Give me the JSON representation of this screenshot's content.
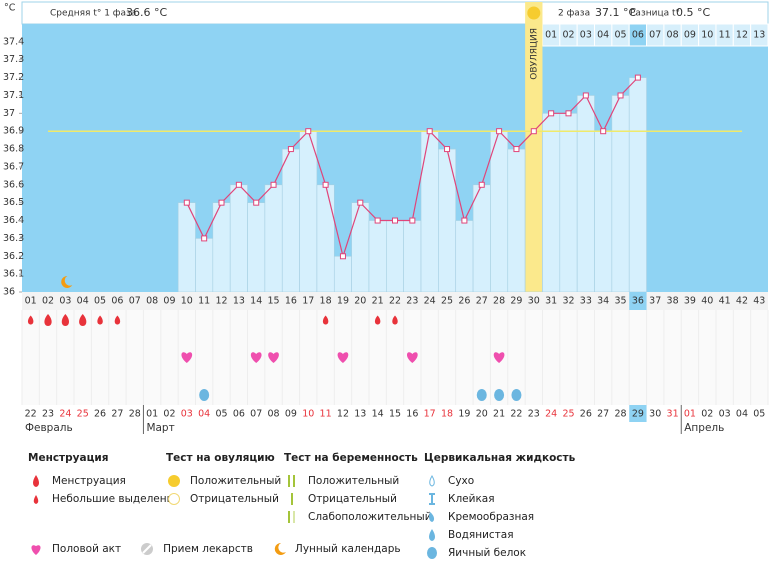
{
  "header": {
    "phase1_label": "Средняя t° 1 фаза",
    "phase1_value": "36.6 °C",
    "phase2_label": "2 фаза",
    "phase2_value": "37.1 °C",
    "diff_label": "Разница t°",
    "diff_value": "0.5 °C"
  },
  "chart_data": {
    "type": "line",
    "y_unit": "°C",
    "ovulation_label": "ОВУЛЯЦИЯ",
    "ovulation_day": "30",
    "today": "36",
    "categories": [
      "01",
      "02",
      "03",
      "04",
      "05",
      "06",
      "07",
      "08",
      "09",
      "10",
      "11",
      "12",
      "13",
      "14",
      "15",
      "16",
      "17",
      "18",
      "19",
      "20",
      "21",
      "22",
      "23",
      "24",
      "25",
      "26",
      "27",
      "28",
      "29",
      "30",
      "31",
      "32",
      "33",
      "34",
      "35",
      "36",
      "37",
      "38",
      "39",
      "40",
      "41",
      "42",
      "43"
    ],
    "post_ovulation_days": [
      null,
      null,
      null,
      null,
      null,
      null,
      null,
      null,
      null,
      null,
      null,
      null,
      null,
      null,
      null,
      null,
      null,
      null,
      null,
      null,
      null,
      null,
      null,
      null,
      null,
      null,
      null,
      null,
      null,
      null,
      "01",
      "02",
      "03",
      "04",
      "05",
      "06",
      "07",
      "08",
      "09",
      "10",
      "11",
      "12",
      "13"
    ],
    "series": [
      {
        "name": "Температура",
        "color": "#e0457a",
        "values": [
          null,
          null,
          null,
          null,
          null,
          null,
          null,
          null,
          null,
          36.5,
          36.3,
          36.5,
          36.6,
          36.5,
          36.6,
          36.8,
          36.9,
          36.6,
          36.2,
          36.5,
          36.4,
          36.4,
          36.4,
          36.9,
          36.8,
          36.4,
          36.6,
          36.9,
          36.8,
          36.9,
          37.0,
          37.0,
          37.1,
          36.9,
          37.1,
          37.2,
          null,
          null,
          null,
          null,
          null,
          null,
          null
        ]
      }
    ],
    "coverline": 36.9,
    "coverline_color": "#f0ea6a",
    "ylim": [
      36,
      37.5
    ],
    "yticks": [
      36,
      36.1,
      36.2,
      36.3,
      36.4,
      36.5,
      36.6,
      36.7,
      36.8,
      36.9,
      37,
      37.1,
      37.2,
      37.3,
      37.4
    ]
  },
  "rows": {
    "menstruation": [
      "light",
      "heavy",
      "heavy",
      "heavy",
      "light",
      "light",
      null,
      null,
      null,
      null,
      null,
      null,
      null,
      null,
      null,
      null,
      null,
      "light",
      null,
      null,
      "light",
      "light",
      null,
      null,
      null,
      null,
      null,
      null,
      null,
      null,
      null,
      null,
      null,
      null,
      null,
      null,
      null,
      null,
      null,
      null,
      null,
      null,
      null
    ],
    "intercourse": [
      "10",
      "14",
      "15",
      "19",
      "23",
      "28"
    ],
    "cervical": [
      "11",
      "27",
      "28",
      "29"
    ],
    "dates": [
      "22",
      "23",
      "24",
      "25",
      "26",
      "27",
      "28",
      "01",
      "02",
      "03",
      "04",
      "05",
      "06",
      "07",
      "08",
      "09",
      "10",
      "11",
      "12",
      "13",
      "14",
      "15",
      "16",
      "17",
      "18",
      "19",
      "20",
      "21",
      "22",
      "23",
      "24",
      "25",
      "26",
      "27",
      "28",
      "29",
      "30",
      "31",
      "01",
      "02",
      "03",
      "04",
      "05"
    ],
    "weekend": [
      false,
      false,
      true,
      true,
      false,
      false,
      false,
      false,
      false,
      true,
      true,
      false,
      false,
      false,
      false,
      false,
      true,
      true,
      false,
      false,
      false,
      false,
      false,
      true,
      true,
      false,
      false,
      false,
      false,
      false,
      true,
      true,
      false,
      false,
      false,
      false,
      false,
      true,
      true,
      false,
      false,
      false,
      false
    ],
    "months": [
      {
        "name": "Февраль",
        "from": "01"
      },
      {
        "name": "Март",
        "from": "08"
      },
      {
        "name": "Апрель",
        "from": "39"
      }
    ]
  },
  "legend": {
    "menstruation": {
      "title": "Менструация",
      "items": [
        "Менструация",
        "Небольшие выделения"
      ]
    },
    "ovulation_test": {
      "title": "Тест на овуляцию",
      "items": [
        "Положительный",
        "Отрицательный"
      ]
    },
    "pregnancy_test": {
      "title": "Тест на беременность",
      "items": [
        "Положительный",
        "Отрицательный",
        "Слабоположительный"
      ]
    },
    "cervical": {
      "title": "Цервикальная жидкость",
      "items": [
        "Сухо",
        "Клейкая",
        "Кремообразная",
        "Водянистая",
        "Яичный белок"
      ]
    },
    "other": [
      "Половой акт",
      "Прием лекарств",
      "Лунный календарь"
    ]
  }
}
